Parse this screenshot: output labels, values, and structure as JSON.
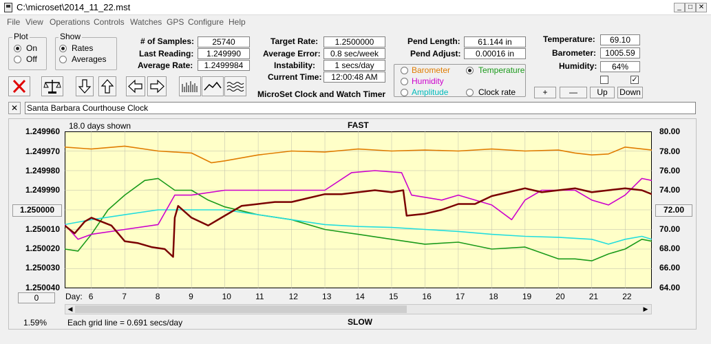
{
  "window": {
    "title": "C:\\microset\\2014_11_22.mst"
  },
  "menu": [
    "File",
    "View",
    "Operations",
    "Controls",
    "Watches",
    "GPS",
    "Configure",
    "Help"
  ],
  "plot_group": {
    "label": "Plot",
    "on": "On",
    "off": "Off",
    "selected": "On"
  },
  "show_group": {
    "label": "Show",
    "rates": "Rates",
    "averages": "Averages",
    "selected": "Rates"
  },
  "stats": {
    "samples_label": "# of Samples:",
    "samples": "25740",
    "last_label": "Last Reading:",
    "last": "1.249990",
    "avg_rate_label": "Average Rate:",
    "avg_rate": "1.2499984",
    "target_label": "Target Rate:",
    "target": "1.2500000",
    "avg_err_label": "Average Error:",
    "avg_err": "0.8 sec/week",
    "instab_label": "Instability:",
    "instab": "1 secs/day",
    "time_label": "Current Time:",
    "time": "12:00:48 AM",
    "app_name": "MicroSet Clock and Watch Timer",
    "pend_len_label": "Pend Length:",
    "pend_len": "61.144 in",
    "pend_adj_label": "Pend Adjust:",
    "pend_adj": "0.00016 in",
    "temp_label": "Temperature:",
    "temp": "69.10",
    "baro_label": "Barometer:",
    "baro": "1005.59",
    "hum_label": "Humidity:",
    "hum": "64%"
  },
  "right_axis_group": {
    "barometer": "Barometer",
    "temperature": "Temperature",
    "humidity": "Humidity",
    "amplitude": "Amplitude",
    "clock_rate": "Clock rate",
    "selected": "Temperature",
    "colors": {
      "barometer": "#e07c00",
      "temperature": "#1a9a1a",
      "humidity": "#cc00cc",
      "amplitude": "#00cccc",
      "clock_rate": "#000000"
    }
  },
  "scale_buttons": {
    "plus": "+",
    "minus": "—",
    "up": "Up",
    "down": "Down"
  },
  "clock_name": "Santa Barbara Courthouse Clock",
  "chart": {
    "days_shown": "18.0 days shown",
    "top": "FAST",
    "bottom": "SLOW",
    "left_ticks": [
      "1.249960",
      "1.249970",
      "1.249980",
      "1.249990",
      "1.250000",
      "1.250010",
      "1.250020",
      "1.250030",
      "1.250040"
    ],
    "right_ticks": [
      "80.00",
      "78.00",
      "76.00",
      "74.00",
      "72.00",
      "70.00",
      "68.00",
      "66.00",
      "64.00"
    ],
    "left_center_button": "1.250000",
    "right_center_button": "72.00",
    "zero_button": "0",
    "day_label": "Day:",
    "day_ticks": [
      "6",
      "7",
      "8",
      "9",
      "10",
      "11",
      "12",
      "13",
      "14",
      "15",
      "16",
      "17",
      "18",
      "19",
      "20",
      "21",
      "22"
    ],
    "percent": "1.59%",
    "grid_note": "Each grid line = 0.691 secs/day",
    "plot_bg": "#ffffc8"
  },
  "chart_data": {
    "type": "line",
    "x_unit": "day",
    "xlim": [
      5.2,
      22.8
    ],
    "left_axis": {
      "ylim": [
        1.24996,
        1.25004
      ],
      "inverted": true
    },
    "right_axis": {
      "ylim": [
        64,
        80
      ]
    },
    "series": [
      {
        "key": "rate",
        "axis": "left",
        "color": "#7a0000",
        "x": [
          5.2,
          5.5,
          5.8,
          6.0,
          6.3,
          6.6,
          7.0,
          7.4,
          7.8,
          8.2,
          8.45,
          8.5,
          8.6,
          9.0,
          9.5,
          10.0,
          10.5,
          11.0,
          11.5,
          12.0,
          12.5,
          13.0,
          13.5,
          14.0,
          14.5,
          15.0,
          15.35,
          15.45,
          16.0,
          16.5,
          17.0,
          17.5,
          18.0,
          18.5,
          19.0,
          19.5,
          20.0,
          20.5,
          21.0,
          21.5,
          22.0,
          22.5,
          22.8
        ],
        "y": [
          1.250008,
          1.250012,
          1.250006,
          1.250004,
          1.250006,
          1.250008,
          1.250016,
          1.250017,
          1.250019,
          1.25002,
          1.250024,
          1.250004,
          1.249998,
          1.250004,
          1.250008,
          1.250003,
          1.249998,
          1.249997,
          1.249996,
          1.249996,
          1.249994,
          1.249992,
          1.249992,
          1.249991,
          1.24999,
          1.249991,
          1.24999,
          1.250003,
          1.250002,
          1.25,
          1.249997,
          1.249997,
          1.249993,
          1.249991,
          1.249989,
          1.249991,
          1.24999,
          1.249989,
          1.249991,
          1.24999,
          1.249989,
          1.24999,
          1.249992
        ]
      },
      {
        "key": "barometer",
        "axis": "right",
        "color": "#e07c00",
        "x": [
          5.2,
          6,
          7,
          8,
          9,
          9.6,
          10,
          11,
          12,
          13,
          14,
          15,
          16,
          17,
          18,
          19,
          20,
          20.5,
          21,
          21.5,
          22,
          22.8
        ],
        "y": [
          78.4,
          78.2,
          78.5,
          78.0,
          77.8,
          76.8,
          77.0,
          77.6,
          78.0,
          77.9,
          78.2,
          78.0,
          78.1,
          78.0,
          78.2,
          78.0,
          78.1,
          77.8,
          77.6,
          77.7,
          78.4,
          78.1
        ]
      },
      {
        "key": "temperature",
        "axis": "right",
        "color": "#1a9a1a",
        "x": [
          5.2,
          5.6,
          6.0,
          6.5,
          7.0,
          7.6,
          8.0,
          8.5,
          9.0,
          9.5,
          10.0,
          11.0,
          12.0,
          13.0,
          14.0,
          15.0,
          16.0,
          17.0,
          18.0,
          19.0,
          20.0,
          20.5,
          21.0,
          21.5,
          22.0,
          22.5,
          22.8
        ],
        "y": [
          68.0,
          67.8,
          69.5,
          72.0,
          73.5,
          75.0,
          75.2,
          74.0,
          74.0,
          73.0,
          72.3,
          71.5,
          71.0,
          70.0,
          69.5,
          69.0,
          68.5,
          68.7,
          68.0,
          68.2,
          67.0,
          67.0,
          66.8,
          67.5,
          68.0,
          69.0,
          68.8
        ]
      },
      {
        "key": "humidity",
        "axis": "right",
        "color": "#cc00cc",
        "x": [
          5.2,
          5.6,
          6.0,
          7.0,
          8.0,
          8.5,
          9.0,
          10.0,
          11.0,
          12.0,
          13.0,
          13.8,
          14.5,
          15.3,
          15.6,
          16.5,
          17.0,
          18.0,
          18.6,
          19.0,
          19.5,
          20.5,
          21.0,
          21.5,
          22.0,
          22.5,
          22.8
        ],
        "y": [
          70.5,
          69.0,
          69.5,
          70.0,
          70.5,
          73.5,
          73.5,
          74.0,
          74.0,
          74.0,
          74.0,
          75.8,
          76.0,
          75.8,
          73.5,
          73.0,
          73.5,
          72.5,
          71.0,
          73.0,
          74.0,
          74.0,
          73.0,
          72.5,
          73.5,
          75.2,
          75.0
        ]
      },
      {
        "key": "amplitude",
        "axis": "right",
        "color": "#22dddd",
        "x": [
          5.2,
          6.0,
          7.0,
          8.0,
          9.0,
          10.0,
          11.0,
          12.0,
          13.0,
          14.0,
          15.0,
          16.0,
          17.0,
          18.0,
          19.0,
          20.0,
          21.0,
          21.5,
          22.0,
          22.5,
          22.8
        ],
        "y": [
          70.5,
          71.0,
          71.5,
          72.0,
          72.0,
          72.0,
          71.5,
          71.0,
          70.5,
          70.3,
          70.2,
          70.0,
          69.8,
          69.5,
          69.3,
          69.2,
          69.0,
          68.5,
          69.0,
          69.3,
          69.0
        ]
      }
    ]
  }
}
